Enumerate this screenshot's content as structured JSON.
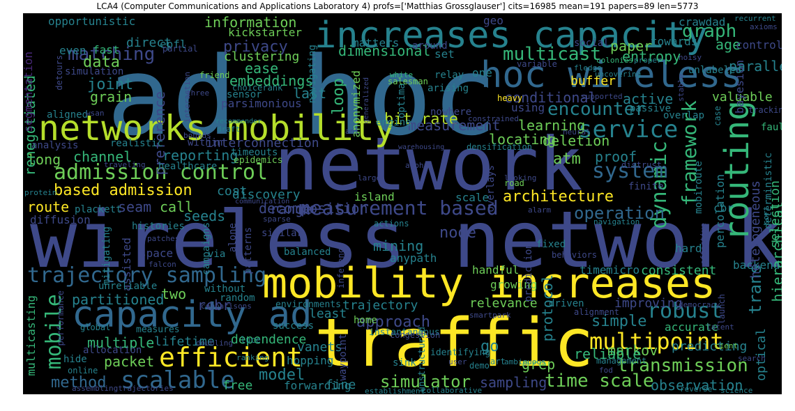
{
  "title": "LCA4 (Computer Communications and Applications Laboratory 4) profs=['Matthias Grossglauser'] cits=16985 mean=191 papers=89 len=5773",
  "palette": {
    "purple": "#482878",
    "indigo": "#3e4989",
    "blue": "#31688e",
    "teal": "#26828e",
    "green": "#1f9e89",
    "lightgreen": "#35b779",
    "yellowgreen": "#6ece58",
    "lime": "#b5de2b",
    "yellow": "#fde725"
  },
  "words": [
    {
      "t": "ad hoc",
      "c": "blue"
    },
    {
      "t": "wireless networks",
      "c": "indigo"
    },
    {
      "t": "network",
      "c": "indigo"
    },
    {
      "t": "traffic",
      "c": "yellow"
    },
    {
      "t": "mobility increases",
      "c": "yellow"
    },
    {
      "t": "increases capacity",
      "c": "teal"
    },
    {
      "t": "hoc wireless",
      "c": "blue"
    },
    {
      "t": "networks mobility",
      "c": "lime"
    },
    {
      "t": "capacity ad",
      "c": "blue"
    },
    {
      "t": "routing",
      "c": "lightgreen"
    },
    {
      "t": "admission control",
      "c": "yellowgreen"
    },
    {
      "t": "efficient",
      "c": "yellow"
    },
    {
      "t": "multipoint",
      "c": "yellow"
    },
    {
      "t": "trajectory sampling",
      "c": "blue"
    },
    {
      "t": "measurement based",
      "c": "indigo"
    },
    {
      "t": "service",
      "c": "teal"
    },
    {
      "t": "scalable",
      "c": "blue"
    },
    {
      "t": "time scale",
      "c": "yellowgreen"
    },
    {
      "t": "transmission",
      "c": "yellowgreen"
    },
    {
      "t": "robust",
      "c": "teal"
    },
    {
      "t": "mobile",
      "c": "lightgreen"
    },
    {
      "t": "framework",
      "c": "lightgreen"
    },
    {
      "t": "dynamic",
      "c": "lightgreen"
    },
    {
      "t": "system",
      "c": "blue"
    },
    {
      "t": "encounter",
      "c": "teal"
    },
    {
      "t": "multicast",
      "c": "lightgreen"
    },
    {
      "t": "graph",
      "c": "lightgreen"
    },
    {
      "t": "matching",
      "c": "indigo"
    },
    {
      "t": "based admission",
      "c": "yellow"
    },
    {
      "t": "architecture",
      "c": "yellow"
    },
    {
      "t": "operation",
      "c": "blue"
    },
    {
      "t": "simulator",
      "c": "yellowgreen"
    },
    {
      "t": "approach",
      "c": "indigo"
    },
    {
      "t": "method",
      "c": "blue"
    },
    {
      "t": "bit rate",
      "c": "lime"
    },
    {
      "t": "measurement",
      "c": "indigo"
    },
    {
      "t": "observation",
      "c": "teal"
    },
    {
      "t": "model",
      "c": "teal"
    },
    {
      "t": "sampling",
      "c": "indigo"
    },
    {
      "t": "trans",
      "c": "teal"
    },
    {
      "t": "data",
      "c": "yellowgreen"
    },
    {
      "t": "privacy",
      "c": "indigo"
    },
    {
      "t": "information",
      "c": "yellowgreen"
    },
    {
      "t": "dimensional",
      "c": "lightgreen"
    },
    {
      "t": "paper",
      "c": "yellowgreen"
    },
    {
      "t": "age",
      "c": "lightgreen"
    },
    {
      "t": "entropy",
      "c": "lightgreen"
    },
    {
      "t": "parallel",
      "c": "teal"
    },
    {
      "t": "joint",
      "c": "teal"
    },
    {
      "t": "grain",
      "c": "yellowgreen"
    },
    {
      "t": "embeddings",
      "c": "lightgreen"
    },
    {
      "t": "channel",
      "c": "lightgreen"
    },
    {
      "t": "reporting",
      "c": "teal"
    },
    {
      "t": "long",
      "c": "yellowgreen"
    },
    {
      "t": "route",
      "c": "yellow"
    },
    {
      "t": "seam",
      "c": "indigo"
    },
    {
      "t": "call",
      "c": "yellowgreen"
    },
    {
      "t": "seeds",
      "c": "teal"
    },
    {
      "t": "range",
      "c": "indigo"
    },
    {
      "t": "decomposition",
      "c": "indigo"
    },
    {
      "t": "island",
      "c": "yellowgreen"
    },
    {
      "t": "scale",
      "c": "teal"
    },
    {
      "t": "conditional",
      "c": "indigo"
    },
    {
      "t": "active",
      "c": "teal"
    },
    {
      "t": "learning",
      "c": "yellowgreen"
    },
    {
      "t": "locating",
      "c": "yellowgreen"
    },
    {
      "t": "deletion",
      "c": "yellowgreen"
    },
    {
      "t": "atm",
      "c": "yellowgreen"
    },
    {
      "t": "proof",
      "c": "teal"
    },
    {
      "t": "percolation",
      "c": "teal"
    },
    {
      "t": "buffer",
      "c": "yellow"
    },
    {
      "t": "loop",
      "c": "lightgreen"
    },
    {
      "t": "last",
      "c": "teal"
    },
    {
      "t": "ease",
      "c": "lightgreen"
    },
    {
      "t": "clustering",
      "c": "yellowgreen"
    },
    {
      "t": "node",
      "c": "indigo"
    },
    {
      "t": "mining",
      "c": "teal"
    },
    {
      "t": "cost",
      "c": "teal"
    },
    {
      "t": "discovery",
      "c": "teal"
    },
    {
      "t": "interconnection",
      "c": "indigo"
    },
    {
      "t": "partitioned",
      "c": "teal"
    },
    {
      "t": "multiple",
      "c": "lightgreen"
    },
    {
      "t": "packet",
      "c": "yellowgreen"
    },
    {
      "t": "lifetime",
      "c": "teal"
    },
    {
      "t": "dependence",
      "c": "lightgreen"
    },
    {
      "t": "vanets",
      "c": "teal"
    },
    {
      "t": "least",
      "c": "teal"
    },
    {
      "t": "trajectory",
      "c": "teal"
    },
    {
      "t": "relevance",
      "c": "yellowgreen"
    },
    {
      "t": "simple",
      "c": "teal"
    },
    {
      "t": "markov",
      "c": "yellowgreen"
    },
    {
      "t": "grep",
      "c": "yellowgreen"
    },
    {
      "t": "go",
      "c": "teal"
    },
    {
      "t": "rcbr",
      "c": "indigo"
    },
    {
      "t": "two",
      "c": "yellowgreen"
    },
    {
      "t": "handful",
      "c": "yellowgreen"
    },
    {
      "t": "growing",
      "c": "yellowgreen"
    },
    {
      "t": "consistent",
      "c": "lightgreen"
    },
    {
      "t": "backend",
      "c": "teal"
    },
    {
      "t": "hard",
      "c": "teal"
    },
    {
      "t": "fixed",
      "c": "teal"
    },
    {
      "t": "time",
      "c": "teal"
    },
    {
      "t": "micro",
      "c": "teal"
    },
    {
      "t": "improving",
      "c": "indigo"
    },
    {
      "t": "hopping",
      "c": "teal"
    },
    {
      "t": "forwarding",
      "c": "teal"
    },
    {
      "t": "fine",
      "c": "teal"
    },
    {
      "t": "free",
      "c": "lightgreen"
    },
    {
      "t": "reliable",
      "c": "lightgreen"
    },
    {
      "t": "predicting",
      "c": "teal"
    },
    {
      "t": "accurate",
      "c": "lightgreen"
    },
    {
      "t": "optical",
      "c": "teal"
    },
    {
      "t": "protocol",
      "c": "teal"
    },
    {
      "t": "hierarchical",
      "c": "lightgreen"
    },
    {
      "t": "heterogeneous",
      "c": "indigo"
    },
    {
      "t": "selection",
      "c": "lightgreen"
    },
    {
      "t": "deterministic",
      "c": "teal"
    },
    {
      "t": "valuable",
      "c": "yellowgreen"
    },
    {
      "t": "bayesian",
      "c": "indigo"
    },
    {
      "t": "passive",
      "c": "teal"
    },
    {
      "t": "overlap",
      "c": "teal"
    },
    {
      "t": "using",
      "c": "indigo"
    },
    {
      "t": "one",
      "c": "teal"
    },
    {
      "t": "set",
      "c": "teal"
    },
    {
      "t": "matters",
      "c": "teal"
    },
    {
      "t": "geo",
      "c": "indigo"
    },
    {
      "t": "social",
      "c": "indigo"
    },
    {
      "t": "towards",
      "c": "teal"
    },
    {
      "t": "control",
      "c": "indigo"
    },
    {
      "t": "crawdad",
      "c": "teal"
    },
    {
      "t": "opportunistic",
      "c": "teal"
    },
    {
      "t": "direct",
      "c": "teal"
    },
    {
      "t": "epfl",
      "c": "teal"
    },
    {
      "t": "kickstarter",
      "c": "yellowgreen"
    },
    {
      "t": "partial",
      "c": "indigo"
    },
    {
      "t": "even",
      "c": "teal"
    },
    {
      "t": "fast",
      "c": "lightgreen"
    },
    {
      "t": "renegotiated",
      "c": "lightgreen"
    },
    {
      "t": "segmentation",
      "c": "purple"
    },
    {
      "t": "preference",
      "c": "indigo"
    },
    {
      "t": "parsimonious",
      "c": "indigo"
    },
    {
      "t": "anonymized",
      "c": "yellowgreen"
    },
    {
      "t": "optimal",
      "c": "teal"
    },
    {
      "t": "arising",
      "c": "teal"
    },
    {
      "t": "heavy",
      "c": "yellow"
    },
    {
      "t": "relay",
      "c": "teal"
    },
    {
      "t": "engine",
      "c": "teal"
    },
    {
      "t": "nowhere",
      "c": "indigo"
    },
    {
      "t": "constrained",
      "c": "indigo"
    },
    {
      "t": "densification",
      "c": "teal"
    },
    {
      "t": "timeouts",
      "c": "teal"
    },
    {
      "t": "epidemics",
      "c": "yellowgreen"
    },
    {
      "t": "healthcare",
      "c": "teal"
    },
    {
      "t": "realistic",
      "c": "teal"
    },
    {
      "t": "within",
      "c": "indigo"
    },
    {
      "t": "analysis",
      "c": "indigo"
    },
    {
      "t": "plackett",
      "c": "teal"
    },
    {
      "t": "histories",
      "c": "teal"
    },
    {
      "t": "diffusion",
      "c": "indigo"
    },
    {
      "t": "mitigating",
      "c": "teal"
    },
    {
      "t": "assisted",
      "c": "indigo"
    },
    {
      "t": "campaigns",
      "c": "teal"
    },
    {
      "t": "space",
      "c": "indigo"
    },
    {
      "t": "via",
      "c": "teal"
    },
    {
      "t": "alone",
      "c": "indigo"
    },
    {
      "t": "patterns",
      "c": "indigo"
    },
    {
      "t": "similar",
      "c": "indigo"
    },
    {
      "t": "actions",
      "c": "teal"
    },
    {
      "t": "anypath",
      "c": "teal"
    },
    {
      "t": "balanced",
      "c": "teal"
    },
    {
      "t": "inference",
      "c": "indigo"
    },
    {
      "t": "prediction",
      "c": "indigo"
    },
    {
      "t": "unreliable",
      "c": "teal"
    },
    {
      "t": "without",
      "c": "teal"
    },
    {
      "t": "random",
      "c": "teal"
    },
    {
      "t": "multicasting",
      "c": "lightgreen"
    },
    {
      "t": "performance",
      "c": "indigo"
    },
    {
      "t": "allocation",
      "c": "indigo"
    },
    {
      "t": "online",
      "c": "teal"
    },
    {
      "t": "hide",
      "c": "teal"
    },
    {
      "t": "success",
      "c": "teal"
    },
    {
      "t": "environments",
      "c": "teal"
    },
    {
      "t": "home",
      "c": "yellowgreen"
    },
    {
      "t": "instantaneous",
      "c": "teal"
    },
    {
      "t": "waypoint",
      "c": "indigo"
    },
    {
      "t": "sink",
      "c": "teal"
    },
    {
      "t": "unstructured",
      "c": "teal"
    },
    {
      "t": "identifying",
      "c": "teal"
    },
    {
      "t": "ranking",
      "c": "teal"
    },
    {
      "t": "luce",
      "c": "teal"
    },
    {
      "t": "comparisons",
      "c": "indigo"
    },
    {
      "t": "measures",
      "c": "teal"
    },
    {
      "t": "global",
      "c": "teal"
    },
    {
      "t": "doubling",
      "c": "indigo"
    },
    {
      "t": "assemblingtrajectories",
      "c": "indigo"
    },
    {
      "t": "establishment",
      "c": "teal"
    },
    {
      "t": "collaborative",
      "c": "teal"
    },
    {
      "t": "ambiguous",
      "c": "teal"
    },
    {
      "t": "demo",
      "c": "teal"
    },
    {
      "t": "art",
      "c": "teal"
    },
    {
      "t": "congestion",
      "c": "indigo"
    },
    {
      "t": "smartpark",
      "c": "indigo"
    },
    {
      "t": "driven",
      "c": "teal"
    },
    {
      "t": "alignment",
      "c": "indigo"
    },
    {
      "t": "management",
      "c": "teal"
    },
    {
      "t": "democracy",
      "c": "indigo"
    },
    {
      "t": "latent",
      "c": "indigo"
    },
    {
      "t": "cient",
      "c": "yellowgreen"
    },
    {
      "t": "search",
      "c": "indigo"
    },
    {
      "t": "reverse",
      "c": "teal"
    },
    {
      "t": "science",
      "c": "teal"
    },
    {
      "t": "launch",
      "c": "indigo"
    },
    {
      "t": "behaviors",
      "c": "indigo"
    },
    {
      "t": "alarm",
      "c": "indigo"
    },
    {
      "t": "navigation",
      "c": "teal"
    },
    {
      "t": "effective",
      "c": "indigo"
    },
    {
      "t": "mobiroute",
      "c": "teal"
    },
    {
      "t": "cbr",
      "c": "teal"
    },
    {
      "t": "finite",
      "c": "indigo"
    },
    {
      "t": "road",
      "c": "yellowgreen"
    },
    {
      "t": "looking",
      "c": "indigo"
    },
    {
      "t": "overlays",
      "c": "indigo"
    },
    {
      "t": "large",
      "c": "indigo"
    },
    {
      "t": "alpha",
      "c": "indigo"
    },
    {
      "t": "distrust",
      "c": "indigo"
    },
    {
      "t": "sort",
      "c": "teal"
    },
    {
      "t": "fault",
      "c": "lightgreen"
    },
    {
      "t": "tracking",
      "c": "indigo"
    },
    {
      "t": "case",
      "c": "teal"
    },
    {
      "t": "stable",
      "c": "indigo"
    },
    {
      "t": "proper",
      "c": "teal"
    },
    {
      "t": "noisy",
      "c": "indigo"
    },
    {
      "t": "unlabeled",
      "c": "teal"
    },
    {
      "t": "colonies",
      "c": "lightgreen"
    },
    {
      "t": "recurrent",
      "c": "teal"
    },
    {
      "t": "axioms",
      "c": "indigo"
    },
    {
      "t": "uncovering",
      "c": "teal"
    },
    {
      "t": "fledge",
      "c": "teal"
    },
    {
      "t": "variable",
      "c": "indigo"
    },
    {
      "t": "supported",
      "c": "indigo"
    },
    {
      "t": "neural",
      "c": "indigo"
    },
    {
      "t": "salesman",
      "c": "yellowgreen"
    },
    {
      "t": "white",
      "c": "lightgreen"
    },
    {
      "t": "around",
      "c": "indigo"
    },
    {
      "t": "navigating",
      "c": "teal"
    },
    {
      "t": "sensor",
      "c": "teal"
    },
    {
      "t": "choicerank",
      "c": "teal"
    },
    {
      "t": "friend",
      "c": "yellowgreen"
    },
    {
      "t": "interaction",
      "c": "indigo"
    },
    {
      "t": "three",
      "c": "indigo"
    },
    {
      "t": "simulation",
      "c": "indigo"
    },
    {
      "t": "aligned",
      "c": "teal"
    },
    {
      "t": "detours",
      "c": "indigo"
    },
    {
      "t": "wsan",
      "c": "indigo"
    },
    {
      "t": "recommender",
      "c": "teal"
    },
    {
      "t": "draft",
      "c": "teal"
    },
    {
      "t": "bounds",
      "c": "indigo"
    },
    {
      "t": "traveling",
      "c": "indigo"
    },
    {
      "t": "protein",
      "c": "teal"
    },
    {
      "t": "communication",
      "c": "indigo"
    },
    {
      "t": "sparse",
      "c": "indigo"
    },
    {
      "t": "patches",
      "c": "indigo"
    },
    {
      "t": "falcon",
      "c": "indigo"
    },
    {
      "t": "warehousing",
      "c": "indigo"
    },
    {
      "t": "generalized",
      "c": "indigo"
    },
    {
      "t": "ant",
      "c": "indigo"
    },
    {
      "t": "user",
      "c": "indigo"
    },
    {
      "t": "fod",
      "c": "indigo"
    }
  ]
}
